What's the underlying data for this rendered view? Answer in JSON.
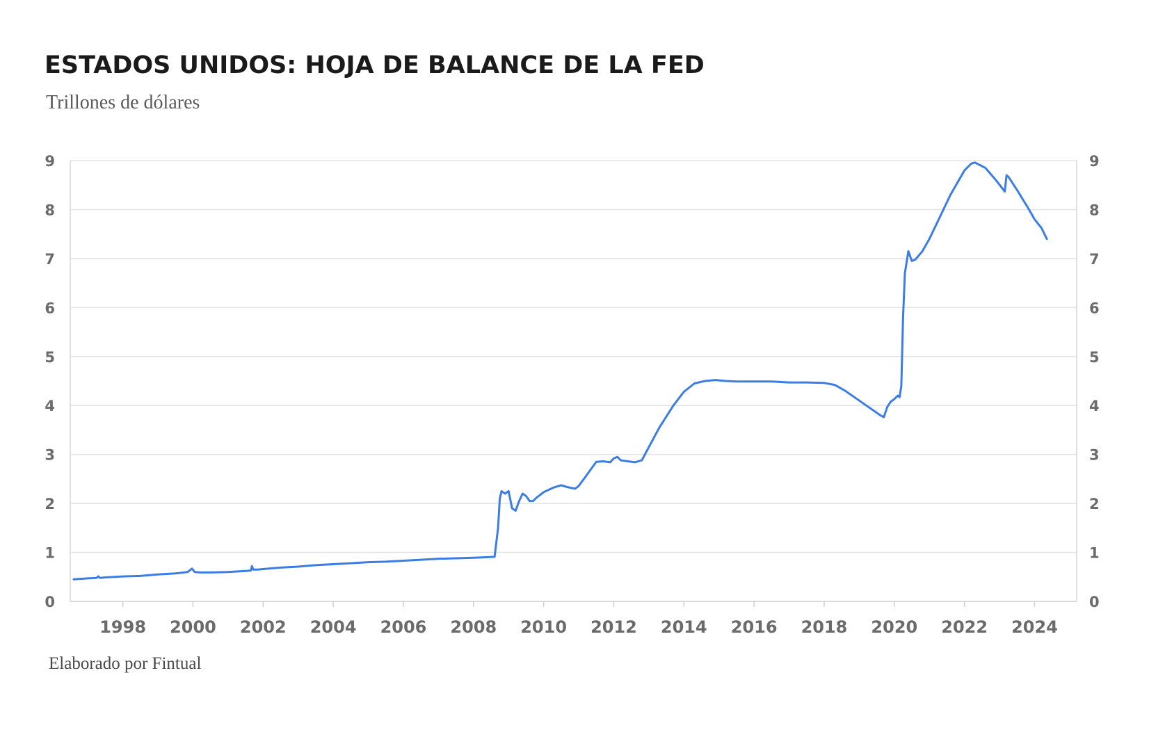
{
  "chart_data": {
    "type": "line",
    "title": "ESTADOS UNIDOS: HOJA DE BALANCE DE LA FED",
    "subtitle": "Trillones de dólares",
    "source": "Elaborado por Fintual",
    "xlabel": "",
    "ylabel": "",
    "xlim": [
      1996.5,
      2025.2
    ],
    "ylim": [
      0,
      9
    ],
    "x_ticks": [
      1998,
      2000,
      2002,
      2004,
      2006,
      2008,
      2010,
      2012,
      2014,
      2016,
      2018,
      2020,
      2022,
      2024
    ],
    "y_ticks": [
      0,
      1,
      2,
      3,
      4,
      5,
      6,
      7,
      8,
      9
    ],
    "y_axis_both_sides": true,
    "grid": "horizontal",
    "legend": "none",
    "line_color": "#3b7de3",
    "series": [
      {
        "x": [
          1996.6,
          1997.0,
          1997.25,
          1997.3,
          1997.35,
          1997.5,
          1998.0,
          1998.5,
          1999.0,
          1999.5,
          1999.85,
          1999.97,
          2000.05,
          2000.2,
          2000.5,
          2001.0,
          2001.5,
          2001.65,
          2001.68,
          2001.72,
          2001.85,
          2002.0,
          2002.5,
          2003.0,
          2003.5,
          2004.0,
          2004.5,
          2005.0,
          2005.5,
          2006.0,
          2006.5,
          2007.0,
          2007.5,
          2008.0,
          2008.3,
          2008.6,
          2008.7,
          2008.75,
          2008.8,
          2008.9,
          2009.0,
          2009.1,
          2009.2,
          2009.3,
          2009.4,
          2009.5,
          2009.6,
          2009.7,
          2009.8,
          2010.0,
          2010.3,
          2010.5,
          2010.7,
          2010.9,
          2011.0,
          2011.2,
          2011.5,
          2011.7,
          2011.9,
          2012.0,
          2012.1,
          2012.2,
          2012.4,
          2012.6,
          2012.8,
          2013.0,
          2013.3,
          2013.7,
          2014.0,
          2014.3,
          2014.6,
          2014.9,
          2015.2,
          2015.5,
          2016.0,
          2016.5,
          2017.0,
          2017.5,
          2018.0,
          2018.3,
          2018.6,
          2019.0,
          2019.3,
          2019.6,
          2019.7,
          2019.8,
          2019.9,
          2020.0,
          2020.1,
          2020.15,
          2020.2,
          2020.25,
          2020.3,
          2020.4,
          2020.5,
          2020.6,
          2020.8,
          2021.0,
          2021.3,
          2021.6,
          2022.0,
          2022.2,
          2022.3,
          2022.6,
          2022.9,
          2023.15,
          2023.2,
          2023.25,
          2023.3,
          2023.5,
          2023.8,
          2024.0,
          2024.2,
          2024.35
        ],
        "y": [
          0.45,
          0.47,
          0.48,
          0.51,
          0.48,
          0.49,
          0.51,
          0.52,
          0.55,
          0.57,
          0.6,
          0.67,
          0.6,
          0.59,
          0.59,
          0.6,
          0.62,
          0.63,
          0.72,
          0.65,
          0.65,
          0.66,
          0.69,
          0.71,
          0.74,
          0.76,
          0.78,
          0.8,
          0.81,
          0.83,
          0.85,
          0.87,
          0.88,
          0.89,
          0.9,
          0.91,
          1.5,
          2.1,
          2.25,
          2.2,
          2.25,
          1.9,
          1.85,
          2.05,
          2.2,
          2.15,
          2.05,
          2.05,
          2.12,
          2.23,
          2.33,
          2.37,
          2.33,
          2.3,
          2.36,
          2.55,
          2.85,
          2.86,
          2.84,
          2.92,
          2.95,
          2.88,
          2.86,
          2.84,
          2.88,
          3.15,
          3.55,
          4.0,
          4.28,
          4.45,
          4.5,
          4.52,
          4.5,
          4.49,
          4.49,
          4.49,
          4.47,
          4.47,
          4.46,
          4.42,
          4.3,
          4.1,
          3.95,
          3.8,
          3.76,
          3.97,
          4.08,
          4.13,
          4.2,
          4.17,
          4.4,
          5.8,
          6.7,
          7.15,
          6.95,
          6.98,
          7.15,
          7.4,
          7.85,
          8.3,
          8.8,
          8.94,
          8.96,
          8.85,
          8.6,
          8.37,
          8.7,
          8.67,
          8.62,
          8.4,
          8.05,
          7.8,
          7.62,
          7.4
        ]
      }
    ]
  }
}
